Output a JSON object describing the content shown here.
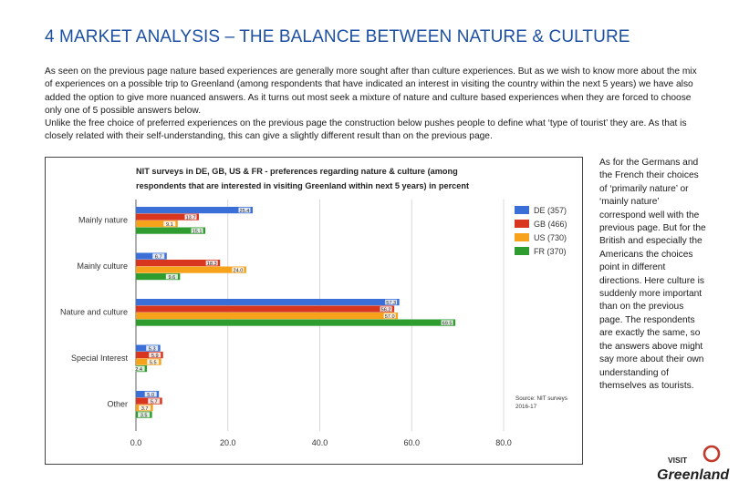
{
  "page": {
    "title": "4 MARKET ANALYSIS – THE BALANCE BETWEEN NATURE & CULTURE",
    "intro_p1": "As seen on the previous page nature based experiences are generally more sought after than culture experiences. But as we wish to know more about the mix of experiences on a possible trip to Greenland (among respondents that have indicated an interest in visiting the country within the next 5 years) we have also added the option to give more nuanced answers. As it turns out most seek a mixture of nature and culture based experiences when they are forced to choose only one of 5 possible answers below.",
    "intro_p2": "Unlike the free choice of preferred experiences on the previous page the construction below pushes people to define what ‘type of tourist’ they are. As that is closely related with their self-understanding, this can give a slightly different result than on the previous page.",
    "side_text": "As for the Germans and the French their choices of ‘primarily nature’ or ‘mainly nature’ correspond well with the previous page. But for the British and especially the Americans the choices point in different directions. Here culture is suddenly more important than on the previous page. The respondents are exactly the same, so the answers above might say more about their own understanding of themselves as tourists."
  },
  "logo": {
    "top": "VISIT",
    "bottom": "Greenland"
  },
  "colors": {
    "DE": "#3a6fd8",
    "GB": "#d9361f",
    "US": "#f6a21a",
    "FR": "#2e9c2e",
    "title": "#1d4fa3"
  },
  "chart_data": {
    "type": "bar",
    "orientation": "horizontal",
    "title_line1": "NIT surveys in DE, GB, US & FR - preferences regarding nature & culture (among",
    "title_line2": "respondents that are interested in visiting Greenland within next 5 years) in percent",
    "categories": [
      "Mainly nature",
      "Mainly culture",
      "Nature and culture",
      "Special Interest",
      "Other"
    ],
    "series": [
      {
        "name": "DE (357)",
        "key": "DE",
        "values": [
          25.4,
          6.7,
          57.3,
          5.3,
          5.0
        ],
        "labels": [
          "25.4",
          "6.7",
          "57.3",
          "5.3",
          "5.0"
        ]
      },
      {
        "name": "GB (466)",
        "key": "GB",
        "values": [
          13.7,
          18.3,
          56.2,
          5.9,
          5.7
        ],
        "labels": [
          "13.7",
          "18.3",
          "56.2",
          "5.9",
          "5.7"
        ]
      },
      {
        "name": "US (730)",
        "key": "US",
        "values": [
          9.1,
          24.0,
          57.0,
          5.5,
          3.7
        ],
        "labels": [
          "9.1",
          "24.0",
          "57.0",
          "5.5",
          "3.7"
        ]
      },
      {
        "name": "FR (370)",
        "key": "FR",
        "values": [
          15.1,
          9.6,
          69.5,
          2.4,
          3.5
        ],
        "labels": [
          "15.1",
          "9.6",
          "69.5",
          "2.4",
          "3.5"
        ]
      }
    ],
    "xlim": [
      0,
      80
    ],
    "xticks": [
      "0.0",
      "20.0",
      "40.0",
      "60.0",
      "80.0"
    ],
    "xtick_values": [
      0,
      20,
      40,
      60,
      80
    ],
    "source_line1": "Source: NIT surveys",
    "source_line2": "2016-17",
    "legend_position": "right"
  }
}
